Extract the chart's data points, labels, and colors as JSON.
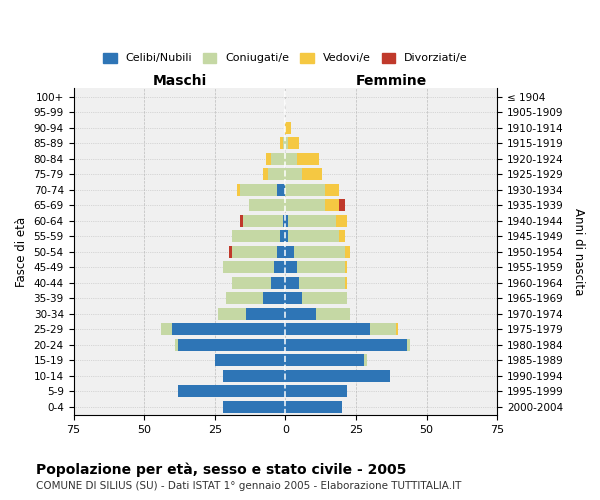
{
  "age_groups": [
    "0-4",
    "5-9",
    "10-14",
    "15-19",
    "20-24",
    "25-29",
    "30-34",
    "35-39",
    "40-44",
    "45-49",
    "50-54",
    "55-59",
    "60-64",
    "65-69",
    "70-74",
    "75-79",
    "80-84",
    "85-89",
    "90-94",
    "95-99",
    "100+"
  ],
  "birth_years": [
    "2000-2004",
    "1995-1999",
    "1990-1994",
    "1985-1989",
    "1980-1984",
    "1975-1979",
    "1970-1974",
    "1965-1969",
    "1960-1964",
    "1955-1959",
    "1950-1954",
    "1945-1949",
    "1940-1944",
    "1935-1939",
    "1930-1934",
    "1925-1929",
    "1920-1924",
    "1915-1919",
    "1910-1914",
    "1905-1909",
    "≤ 1904"
  ],
  "colors": {
    "celibi": "#2e75b6",
    "coniugati": "#c5d8a4",
    "vedovi": "#f5c842",
    "divorziati": "#c0392b"
  },
  "males": {
    "celibi": [
      22,
      38,
      22,
      25,
      38,
      40,
      14,
      8,
      5,
      4,
      3,
      2,
      1,
      0,
      3,
      0,
      0,
      0,
      0,
      0,
      0
    ],
    "coniugati": [
      0,
      0,
      0,
      0,
      1,
      4,
      10,
      13,
      14,
      18,
      16,
      17,
      14,
      13,
      13,
      6,
      5,
      1,
      0,
      0,
      0
    ],
    "vedovi": [
      0,
      0,
      0,
      0,
      0,
      0,
      0,
      0,
      0,
      0,
      0,
      0,
      0,
      0,
      1,
      2,
      2,
      1,
      0,
      0,
      0
    ],
    "divorziati": [
      0,
      0,
      0,
      0,
      0,
      0,
      0,
      0,
      0,
      0,
      1,
      0,
      1,
      0,
      0,
      0,
      0,
      0,
      0,
      0,
      0
    ]
  },
  "females": {
    "nubili": [
      20,
      22,
      37,
      28,
      43,
      30,
      11,
      6,
      5,
      4,
      3,
      1,
      1,
      0,
      0,
      0,
      0,
      0,
      0,
      0,
      0
    ],
    "coniugate": [
      0,
      0,
      0,
      1,
      1,
      9,
      12,
      16,
      16,
      17,
      18,
      18,
      17,
      14,
      14,
      6,
      4,
      1,
      0,
      0,
      0
    ],
    "vedove": [
      0,
      0,
      0,
      0,
      0,
      1,
      0,
      0,
      1,
      1,
      2,
      2,
      4,
      5,
      5,
      7,
      8,
      4,
      2,
      0,
      0
    ],
    "divorziate": [
      0,
      0,
      0,
      0,
      0,
      0,
      0,
      0,
      0,
      0,
      0,
      0,
      0,
      2,
      0,
      0,
      0,
      0,
      0,
      0,
      0
    ]
  },
  "xlim": 75,
  "title_main": "Popolazione per età, sesso e stato civile - 2005",
  "title_sub": "COMUNE DI SILIUS (SU) - Dati ISTAT 1° gennaio 2005 - Elaborazione TUTTITALIA.IT",
  "xlabel_left": "Maschi",
  "xlabel_right": "Femmine",
  "ylabel_left": "Fasce di età",
  "ylabel_right": "Anni di nascita",
  "legend_labels": [
    "Celibi/Nubili",
    "Coniugati/e",
    "Vedovi/e",
    "Divorziati/e"
  ],
  "bg_color": "#f0f0f0"
}
